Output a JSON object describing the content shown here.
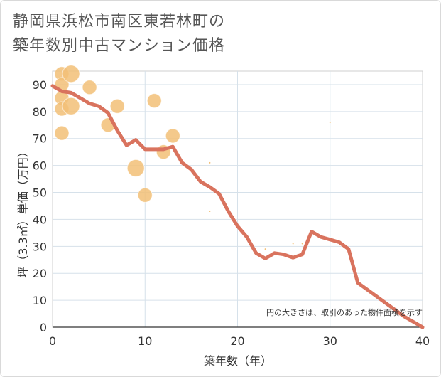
{
  "title_line1": "静岡県浜松市南区東若林町の",
  "title_line2": "築年数別中古マンション価格",
  "chart_data": {
    "type": "scatter+line",
    "xlabel": "築年数（年）",
    "ylabel": "坪（3.3㎡）単価（万円）",
    "xlim": [
      0,
      40
    ],
    "ylim": [
      0,
      95
    ],
    "xticks": [
      0,
      10,
      20,
      30,
      40
    ],
    "yticks": [
      0,
      10,
      20,
      30,
      40,
      50,
      60,
      70,
      80,
      90
    ],
    "note": "円の大きさは、取引のあった物件面積を示す",
    "scatter_color": "#f2c077",
    "line_color": "#d9735e",
    "scatter": [
      {
        "x": 1,
        "y": 94,
        "size": 2
      },
      {
        "x": 1,
        "y": 90,
        "size": 2
      },
      {
        "x": 1,
        "y": 85,
        "size": 2
      },
      {
        "x": 1,
        "y": 81,
        "size": 2
      },
      {
        "x": 1,
        "y": 72,
        "size": 2
      },
      {
        "x": 2,
        "y": 94,
        "size": 3
      },
      {
        "x": 2,
        "y": 82,
        "size": 3
      },
      {
        "x": 4,
        "y": 89,
        "size": 2
      },
      {
        "x": 6,
        "y": 75,
        "size": 2
      },
      {
        "x": 7,
        "y": 82,
        "size": 2
      },
      {
        "x": 9,
        "y": 59,
        "size": 3
      },
      {
        "x": 10,
        "y": 49,
        "size": 2
      },
      {
        "x": 11,
        "y": 84,
        "size": 2
      },
      {
        "x": 12,
        "y": 65,
        "size": 2
      },
      {
        "x": 13,
        "y": 71,
        "size": 2
      },
      {
        "x": 17,
        "y": 61,
        "size": 0.2
      },
      {
        "x": 17,
        "y": 43,
        "size": 0.2
      },
      {
        "x": 23,
        "y": 29,
        "size": 0.2
      },
      {
        "x": 26,
        "y": 31,
        "size": 0.2
      },
      {
        "x": 27,
        "y": 31,
        "size": 0.2
      },
      {
        "x": 30,
        "y": 76,
        "size": 0.2
      }
    ],
    "line": {
      "x": [
        0,
        1,
        2,
        3,
        4,
        5,
        6,
        7,
        8,
        9,
        10,
        11,
        12,
        13,
        14,
        15,
        16,
        17,
        18,
        19,
        20,
        21,
        22,
        23,
        24,
        25,
        26,
        27,
        28,
        29,
        30,
        31,
        32,
        33,
        34,
        35,
        36,
        37,
        38,
        39,
        40
      ],
      "y": [
        89.5,
        87.5,
        87,
        85,
        83,
        82,
        79.5,
        73,
        67.5,
        69.5,
        66,
        66,
        66,
        67,
        61,
        58.5,
        54,
        52,
        49.5,
        43,
        37.5,
        33.5,
        27.5,
        25.5,
        27.5,
        27,
        25.8,
        27,
        35.5,
        33.5,
        32.5,
        31.5,
        29,
        16.5,
        14,
        11.5,
        9,
        6.5,
        4,
        2,
        0
      ]
    }
  }
}
